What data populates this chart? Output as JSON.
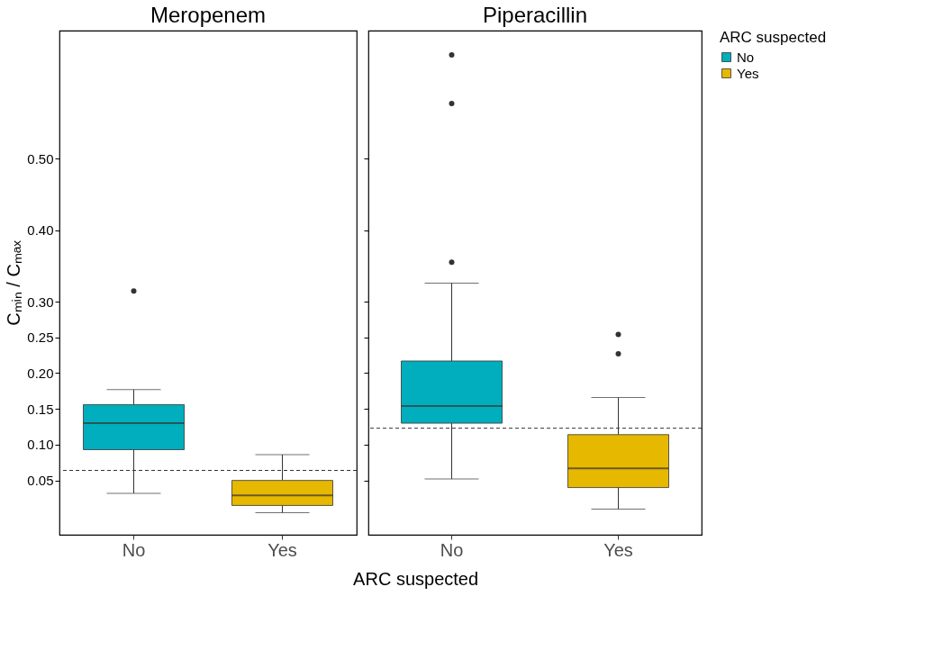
{
  "chart_data": [
    {
      "type": "box",
      "title": "Meropenem",
      "xlabel": "ARC suspected",
      "ylabel": "Cₘᵢₙ / Cₘₐₓ",
      "legend_title": "ARC suspected",
      "legend": "right",
      "grid": false,
      "categories": [
        "No",
        "Yes"
      ],
      "series": [
        {
          "name": "No",
          "color": "#00aebd",
          "boxes": [
            {
              "low": 0.032,
              "q1": 0.093,
              "median": 0.13,
              "q3": 0.156,
              "high": 0.177,
              "outliers": [
                0.315
              ]
            },
            null
          ]
        },
        {
          "name": "Yes",
          "color": "#e6b800",
          "boxes": [
            null,
            {
              "low": 0.005,
              "q1": 0.015,
              "median": 0.029,
              "q3": 0.05,
              "high": 0.086
            }
          ]
        }
      ],
      "ylim": [
        -0.026,
        0.679
      ],
      "yticks": [
        0.05,
        {
          "value": 0.1,
          "label": "0.10"
        },
        0.15,
        {
          "value": 0.2,
          "label": "0.20"
        },
        0.25,
        {
          "value": 0.3,
          "label": "0.30"
        },
        {
          "value": 0.4,
          "label": "0.40"
        },
        {
          "value": 0.5,
          "label": "0.50"
        }
      ],
      "ref_lines": [
        {
          "axis": "y",
          "value": 0.064,
          "line_style": "dashed"
        }
      ]
    },
    {
      "type": "box",
      "title": "Piperacillin",
      "grid": false,
      "tick_labels": "x",
      "categories": [
        "No",
        "Yes"
      ],
      "series": [
        {
          "name": "No",
          "color": "#00aebd",
          "boxes": [
            {
              "low": 0.052,
              "q1": 0.13,
              "median": 0.154,
              "q3": 0.217,
              "high": 0.326,
              "outliers": [
                0.355,
                0.577,
                0.645
              ]
            },
            null
          ]
        },
        {
          "name": "Yes",
          "color": "#e6b800",
          "boxes": [
            null,
            {
              "low": 0.01,
              "q1": 0.04,
              "median": 0.067,
              "q3": 0.114,
              "high": 0.166,
              "outliers": [
                0.227,
                0.254
              ]
            }
          ]
        }
      ],
      "ylim": [
        -0.026,
        0.679
      ],
      "yticks": [
        0.05,
        0.1,
        0.15,
        0.2,
        0.25,
        0.3,
        0.4,
        0.5
      ],
      "ref_lines": [
        {
          "axis": "y",
          "value": 0.123,
          "line_style": "dashed"
        }
      ]
    }
  ]
}
